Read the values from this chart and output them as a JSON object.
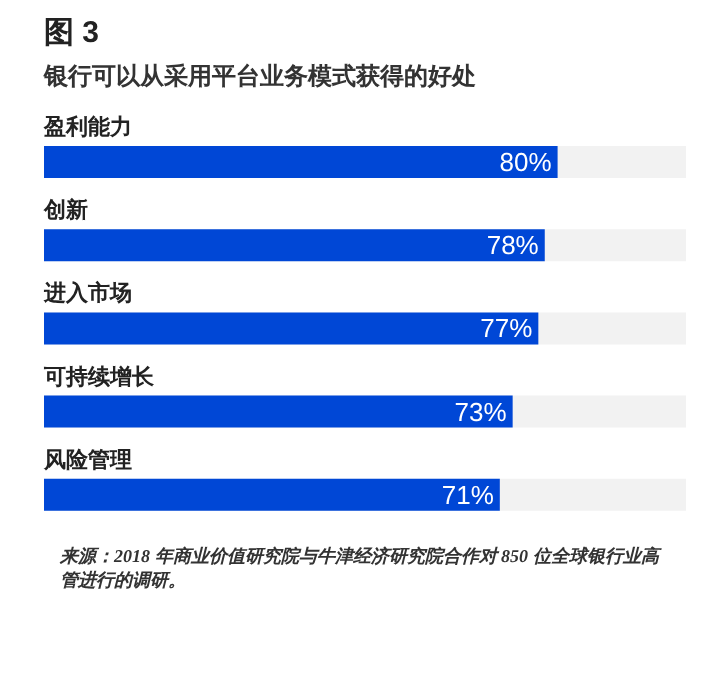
{
  "chart_data": {
    "type": "bar",
    "orientation": "horizontal",
    "title": "图 3",
    "subtitle": "银行可以从采用平台业务模式获得的好处",
    "categories": [
      "盈利能力",
      "创新",
      "进入市场",
      "可持续增长",
      "风险管理"
    ],
    "values": [
      80,
      78,
      77,
      73,
      71
    ],
    "value_labels": [
      "80%",
      "78%",
      "77%",
      "73%",
      "71%"
    ],
    "color": "#0047d6",
    "xlim": [
      0,
      100
    ],
    "grid": false,
    "legend": false,
    "tick_labels": false,
    "annotations": [
      "来源：2018 年商业价值研究院与牛津经济研究院合作对 850 位全球银行业高管进行的调研。"
    ]
  }
}
